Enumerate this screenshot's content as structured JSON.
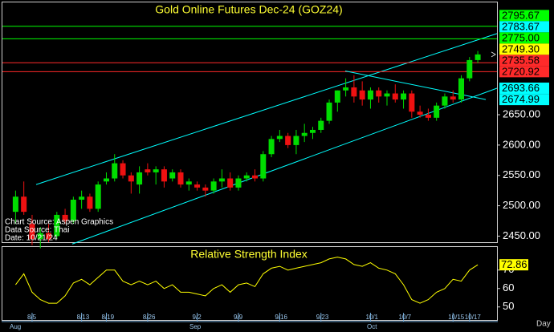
{
  "chart_data": [
    {
      "type": "candlestick",
      "title": "Gold Online Futures Dec-24 (GOZ24)",
      "categories": [
        null,
        null,
        "8/5",
        null,
        null,
        null,
        null,
        null,
        "8/13",
        null,
        null,
        "8/19",
        null,
        null,
        null,
        null,
        "8/26",
        null,
        null,
        null,
        null,
        null,
        "9/2",
        null,
        null,
        null,
        null,
        "9/9",
        null,
        null,
        null,
        null,
        "9/16",
        null,
        null,
        null,
        null,
        "9/23",
        null,
        null,
        null,
        null,
        null,
        "10/1",
        null,
        null,
        null,
        "10/7",
        null,
        null,
        null,
        null,
        null,
        "10/15",
        null,
        "10/17",
        null
      ],
      "month_labels": [
        "Aug",
        "Sep",
        "Oct"
      ],
      "open": [
        2490,
        2515,
        2470,
        2445,
        2455,
        2450,
        2485,
        2475,
        2510,
        2515,
        2495,
        2540,
        2545,
        2570,
        2550,
        2535,
        2560,
        2555,
        2560,
        2545,
        2555,
        2535,
        2535,
        2530,
        2525,
        2540,
        2545,
        2530,
        2545,
        2550,
        2545,
        2585,
        2610,
        2615,
        2600,
        2615,
        2620,
        2625,
        2640,
        2670,
        2690,
        2695,
        2690,
        2675,
        2690,
        2680,
        2685,
        2675,
        2685,
        2655,
        2650,
        2645,
        2665,
        2680,
        2675,
        2710,
        2740
      ],
      "high": [
        2525,
        2540,
        2485,
        2465,
        2470,
        2490,
        2495,
        2515,
        2525,
        2520,
        2540,
        2555,
        2585,
        2575,
        2555,
        2565,
        2570,
        2565,
        2565,
        2560,
        2560,
        2545,
        2540,
        2535,
        2545,
        2560,
        2555,
        2550,
        2555,
        2560,
        2590,
        2615,
        2625,
        2620,
        2625,
        2635,
        2630,
        2645,
        2675,
        2690,
        2710,
        2715,
        2705,
        2695,
        2695,
        2690,
        2700,
        2690,
        2690,
        2665,
        2660,
        2670,
        2685,
        2690,
        2715,
        2745,
        2755
      ],
      "low": [
        2470,
        2485,
        2435,
        2430,
        2440,
        2445,
        2470,
        2470,
        2495,
        2490,
        2490,
        2535,
        2540,
        2545,
        2520,
        2520,
        2550,
        2535,
        2530,
        2540,
        2530,
        2525,
        2525,
        2515,
        2520,
        2530,
        2525,
        2525,
        2540,
        2540,
        2540,
        2580,
        2605,
        2595,
        2585,
        2605,
        2610,
        2620,
        2635,
        2655,
        2680,
        2670,
        2665,
        2660,
        2670,
        2665,
        2670,
        2660,
        2645,
        2645,
        2640,
        2640,
        2660,
        2670,
        2670,
        2705,
        2735
      ],
      "close": [
        2515,
        2490,
        2445,
        2455,
        2445,
        2485,
        2475,
        2510,
        2515,
        2495,
        2535,
        2545,
        2570,
        2550,
        2540,
        2555,
        2555,
        2560,
        2540,
        2555,
        2535,
        2540,
        2530,
        2525,
        2540,
        2545,
        2530,
        2545,
        2550,
        2545,
        2585,
        2610,
        2615,
        2600,
        2615,
        2620,
        2625,
        2640,
        2670,
        2690,
        2695,
        2680,
        2675,
        2690,
        2680,
        2685,
        2675,
        2685,
        2655,
        2650,
        2645,
        2665,
        2680,
        2675,
        2710,
        2740,
        2749.3
      ],
      "up_color": "#00dd00",
      "down_color": "#ee1111",
      "ylim": [
        2440,
        2835
      ],
      "yticks": [
        {
          "value": 2650,
          "label": "2650.00"
        },
        {
          "value": 2600,
          "label": "2600.00"
        },
        {
          "value": 2550,
          "label": "2550.00"
        },
        {
          "value": 2500,
          "label": "2500.00"
        },
        {
          "value": 2450,
          "label": "2450.00"
        }
      ],
      "levels": [
        {
          "value": 2795.67,
          "color": "#00ff00",
          "kind": "horizontal"
        },
        {
          "value": 2783.67,
          "color": "#00ffff",
          "kind": "upper-channel"
        },
        {
          "value": 2775,
          "label": "2775.00",
          "color": "#00ff00",
          "kind": "horizontal"
        },
        {
          "value": 2749.3,
          "label": "2749.30",
          "color": "#ffff00",
          "kind": "last"
        },
        {
          "value": 2735.58,
          "color": "#ff2a2a",
          "kind": "horizontal"
        },
        {
          "value": 2720.92,
          "color": "#ff2a2a",
          "kind": "horizontal"
        },
        {
          "value": 2693.66,
          "color": "#00ffff",
          "kind": "lower-channel"
        },
        {
          "value": 2674.99,
          "color": "#00ffff",
          "kind": "down-trend"
        }
      ],
      "annotations": [
        "Chart Source: Aspen Graphics",
        "Data Source: Thai",
        "Date: 10/21/24"
      ]
    },
    {
      "type": "line",
      "title": "Relative Strength Index",
      "values": [
        62,
        68,
        58,
        54,
        52,
        52,
        56,
        63,
        65,
        62,
        66,
        70,
        70,
        64,
        62,
        64,
        62,
        64,
        60,
        62,
        58,
        58,
        57,
        56,
        60,
        62,
        58,
        62,
        63,
        61,
        68,
        71,
        72,
        70,
        71,
        72,
        73,
        74,
        76,
        77,
        76,
        73,
        72,
        74,
        71,
        70,
        68,
        62,
        54,
        52,
        54,
        58,
        60,
        65,
        64,
        70,
        72.86
      ],
      "color": "#ffff00",
      "ylim": [
        42.5,
        82.5
      ],
      "yticks": [
        70,
        60,
        50
      ],
      "last_label": "72.86",
      "x_unit_label": "Day"
    }
  ]
}
